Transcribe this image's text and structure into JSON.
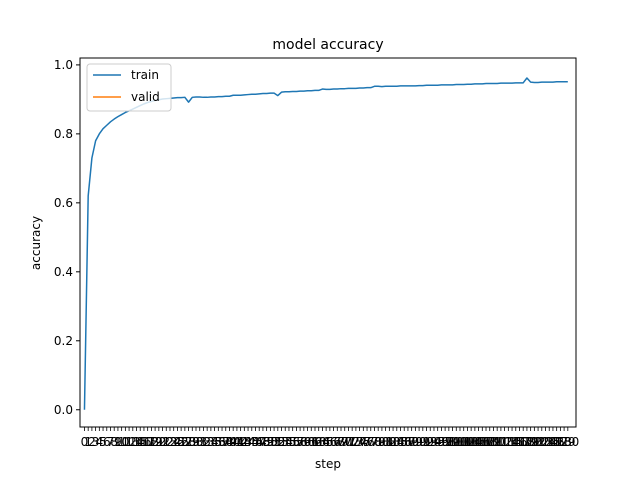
{
  "colors": {
    "train": "#1f77b4",
    "valid": "#ff7f0e",
    "axes": "#000000",
    "background": "#ffffff"
  },
  "chart_data": {
    "type": "line",
    "title": "model accuracy",
    "xlabel": "step",
    "ylabel": "accuracy",
    "ylim": [
      -0.05,
      1.02
    ],
    "yticks": [
      0.0,
      0.2,
      0.4,
      0.6,
      0.8,
      1.0
    ],
    "ytick_labels": [
      "0.0",
      "0.2",
      "0.4",
      "0.6",
      "0.8",
      "1.0"
    ],
    "xlim_index": [
      -1.2,
      132.2
    ],
    "xtick_count": 131,
    "grid": false,
    "legend": {
      "placement": "top-left",
      "entries": [
        "train",
        "valid"
      ]
    },
    "series": [
      {
        "name": "train",
        "x": [
          0,
          1,
          2,
          3,
          4,
          5,
          6,
          7,
          8,
          9,
          10,
          11,
          12,
          13,
          14,
          15,
          16,
          17,
          18,
          19,
          20,
          21,
          22,
          23,
          24,
          25,
          26,
          27,
          28,
          29,
          30,
          31,
          32,
          33,
          34,
          35,
          36,
          37,
          38,
          39,
          40,
          41,
          42,
          43,
          44,
          45,
          46,
          47,
          48,
          49,
          50,
          51,
          52,
          53,
          54,
          55,
          56,
          57,
          58,
          59,
          60,
          61,
          62,
          63,
          64,
          65,
          66,
          67,
          68,
          69,
          70,
          71,
          72,
          73,
          74,
          75,
          76,
          77,
          78,
          79,
          80,
          81,
          82,
          83,
          84,
          85,
          86,
          87,
          88,
          89,
          90,
          91,
          92,
          93,
          94,
          95,
          96,
          97,
          98,
          99,
          100,
          101,
          102,
          103,
          104,
          105,
          106,
          107,
          108,
          109,
          110,
          111,
          112,
          113,
          114,
          115,
          116,
          117,
          118,
          119,
          120,
          121,
          122,
          123,
          124,
          125,
          126,
          127,
          128,
          129,
          130
        ],
        "values": [
          0.0,
          0.62,
          0.73,
          0.78,
          0.8,
          0.815,
          0.825,
          0.835,
          0.843,
          0.85,
          0.856,
          0.862,
          0.867,
          0.872,
          0.877,
          0.882,
          0.887,
          0.891,
          0.894,
          0.897,
          0.899,
          0.901,
          0.902,
          0.903,
          0.904,
          0.905,
          0.905,
          0.906,
          0.892,
          0.906,
          0.907,
          0.907,
          0.906,
          0.906,
          0.907,
          0.907,
          0.908,
          0.908,
          0.909,
          0.909,
          0.912,
          0.912,
          0.912,
          0.913,
          0.914,
          0.915,
          0.915,
          0.916,
          0.917,
          0.917,
          0.918,
          0.918,
          0.911,
          0.921,
          0.922,
          0.922,
          0.923,
          0.923,
          0.924,
          0.924,
          0.925,
          0.925,
          0.926,
          0.926,
          0.93,
          0.929,
          0.929,
          0.93,
          0.93,
          0.931,
          0.931,
          0.932,
          0.932,
          0.932,
          0.933,
          0.933,
          0.934,
          0.934,
          0.938,
          0.938,
          0.937,
          0.938,
          0.938,
          0.938,
          0.938,
          0.939,
          0.939,
          0.939,
          0.939,
          0.939,
          0.94,
          0.94,
          0.941,
          0.941,
          0.941,
          0.941,
          0.942,
          0.942,
          0.942,
          0.942,
          0.943,
          0.943,
          0.943,
          0.944,
          0.944,
          0.945,
          0.945,
          0.945,
          0.946,
          0.946,
          0.946,
          0.946,
          0.947,
          0.947,
          0.947,
          0.947,
          0.948,
          0.948,
          0.948,
          0.962,
          0.95,
          0.949,
          0.949,
          0.95,
          0.95,
          0.95,
          0.95,
          0.951,
          0.951,
          0.951,
          0.951
        ]
      },
      {
        "name": "valid",
        "x": [],
        "values": []
      }
    ]
  }
}
